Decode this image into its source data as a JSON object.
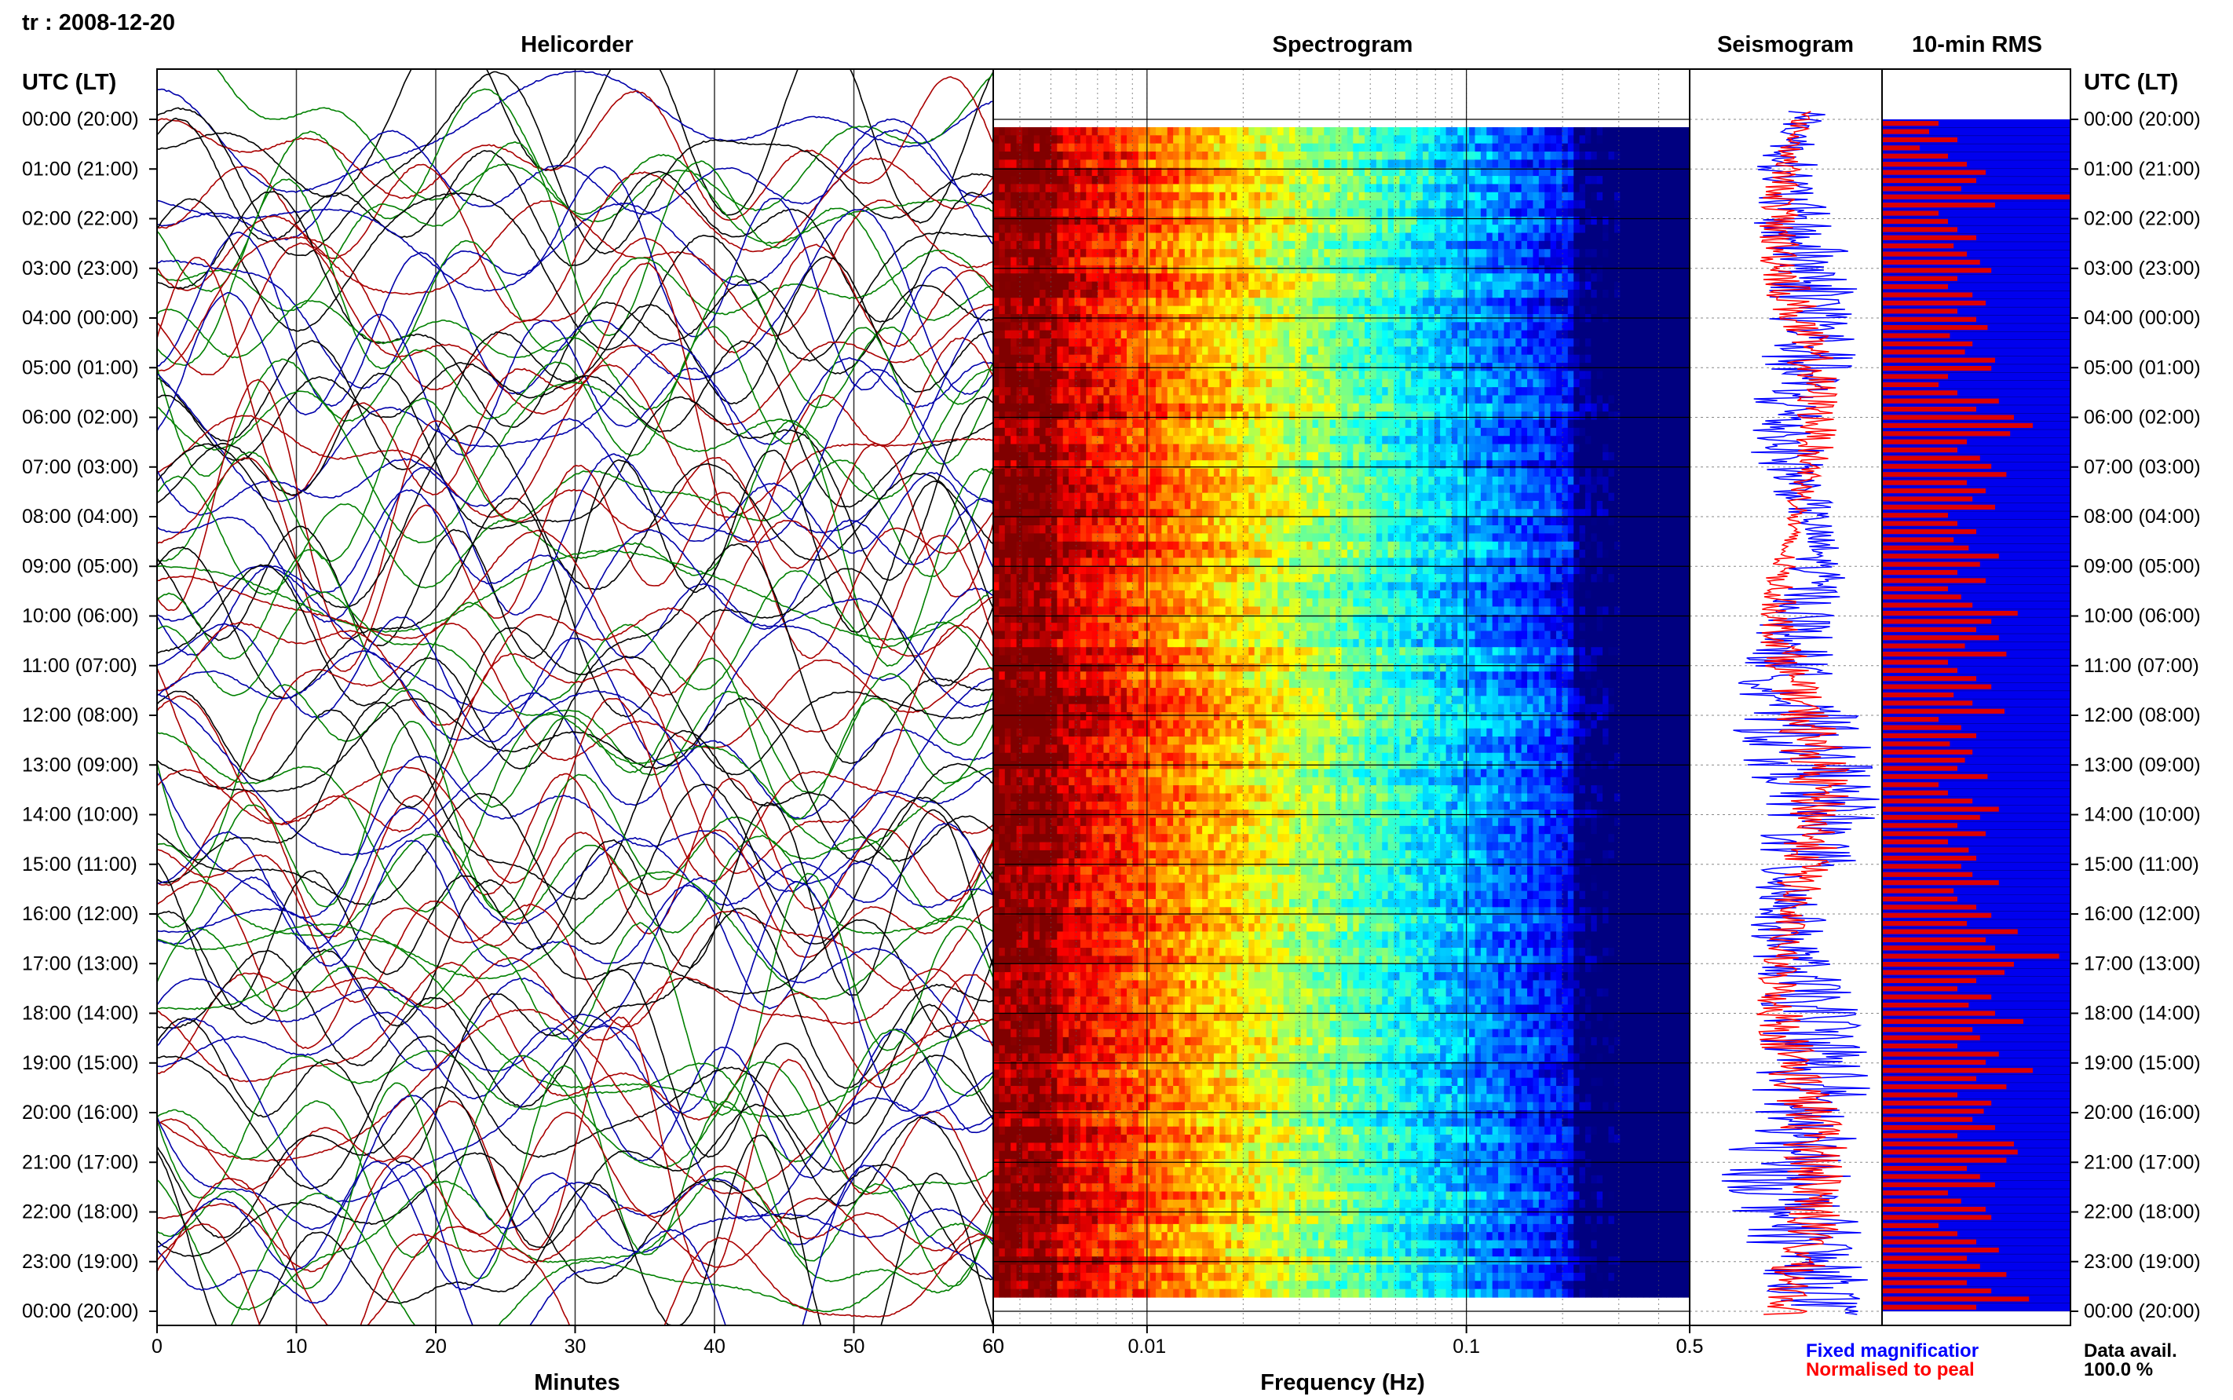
{
  "station": "tr : 2008-12-20",
  "panel_titles": {
    "helicorder": "Helicorder",
    "spectrogram": "Spectrogram",
    "seismogram": "Seismogram",
    "rms": "10-min RMS"
  },
  "time_header": "UTC (LT)",
  "time_labels": [
    "00:00 (20:00)",
    "01:00 (21:00)",
    "02:00 (22:00)",
    "03:00 (23:00)",
    "04:00 (00:00)",
    "05:00 (01:00)",
    "06:00 (02:00)",
    "07:00 (03:00)",
    "08:00 (04:00)",
    "09:00 (05:00)",
    "10:00 (06:00)",
    "11:00 (07:00)",
    "12:00 (08:00)",
    "13:00 (09:00)",
    "14:00 (10:00)",
    "15:00 (11:00)",
    "16:00 (12:00)",
    "17:00 (13:00)",
    "18:00 (14:00)",
    "19:00 (15:00)",
    "20:00 (16:00)",
    "21:00 (17:00)",
    "22:00 (18:00)",
    "23:00 (19:00)",
    "00:00 (20:00)"
  ],
  "legend": {
    "fixed": "Fixed magnificatior",
    "normalised": "Normalised to peal",
    "fixed_color": "#0000ff",
    "normalised_color": "#ff0000"
  },
  "data_avail": {
    "label": "Data avail.",
    "value": "100.0 %"
  },
  "chart_data": [
    {
      "type": "line",
      "title": "Helicorder",
      "xlabel": "Minutes",
      "xlim": [
        0,
        60
      ],
      "x_ticks": [
        "0",
        "10",
        "20",
        "30",
        "40",
        "50",
        "60"
      ],
      "trace_colors": [
        "#000000",
        "#0000aa",
        "#008000",
        "#aa0000"
      ],
      "lines_per_hour": 4,
      "hours": 24
    },
    {
      "type": "heatmap",
      "title": "Spectrogram",
      "xlabel": "Frequency (Hz)",
      "x_scale": "log",
      "xlim": [
        0.0033,
        0.5
      ],
      "x_tick_labels": [
        {
          "value": 0.01,
          "label": "0.01"
        },
        {
          "value": 0.1,
          "label": "0.1"
        },
        {
          "value": 0.5,
          "label": "0.5"
        }
      ],
      "colormap": "jet",
      "rows": 144
    },
    {
      "type": "line",
      "title": "Seismogram",
      "x_tick_labels": [
        "0.5"
      ],
      "series": [
        {
          "name": "Fixed magnificatior",
          "color": "#0000ff"
        },
        {
          "name": "Normalised to peal",
          "color": "#ff0000"
        }
      ]
    },
    {
      "type": "bar",
      "title": "10-min RMS",
      "bar_color": "#dd0000",
      "background_color": "#0000ee",
      "values": [
        0.3,
        0.25,
        0.4,
        0.2,
        0.35,
        0.45,
        0.55,
        0.5,
        0.42,
        1.0,
        0.6,
        0.3,
        0.35,
        0.4,
        0.5,
        0.38,
        0.45,
        0.52,
        0.58,
        0.4,
        0.35,
        0.48,
        0.55,
        0.4,
        0.5,
        0.56,
        0.36,
        0.48,
        0.44,
        0.6,
        0.58,
        0.35,
        0.3,
        0.4,
        0.62,
        0.5,
        0.7,
        0.8,
        0.68,
        0.45,
        0.4,
        0.52,
        0.58,
        0.66,
        0.45,
        0.55,
        0.48,
        0.6,
        0.35,
        0.4,
        0.5,
        0.38,
        0.46,
        0.62,
        0.52,
        0.4,
        0.55,
        0.35,
        0.42,
        0.48,
        0.72,
        0.58,
        0.5,
        0.62,
        0.44,
        0.66,
        0.35,
        0.4,
        0.5,
        0.58,
        0.38,
        0.48,
        0.65,
        0.3,
        0.42,
        0.5,
        0.36,
        0.48,
        0.44,
        0.4,
        0.56,
        0.3,
        0.35,
        0.48,
        0.62,
        0.52,
        0.4,
        0.55,
        0.35,
        0.46,
        0.5,
        0.42,
        0.48,
        0.62,
        0.38,
        0.4,
        0.5,
        0.58,
        0.45,
        0.72,
        0.55,
        0.6,
        0.94,
        0.7,
        0.65,
        0.5,
        0.4,
        0.58,
        0.46,
        0.6,
        0.75,
        0.48,
        0.52,
        0.4,
        0.62,
        0.55,
        0.8,
        0.5,
        0.66,
        0.4,
        0.58,
        0.54,
        0.48,
        0.6,
        0.4,
        0.7,
        0.72,
        0.66,
        0.45,
        0.52,
        0.6,
        0.35,
        0.42,
        0.55,
        0.58,
        0.3,
        0.4,
        0.5,
        0.62,
        0.45,
        0.52,
        0.66,
        0.45,
        0.58,
        0.78,
        0.5
      ]
    }
  ]
}
